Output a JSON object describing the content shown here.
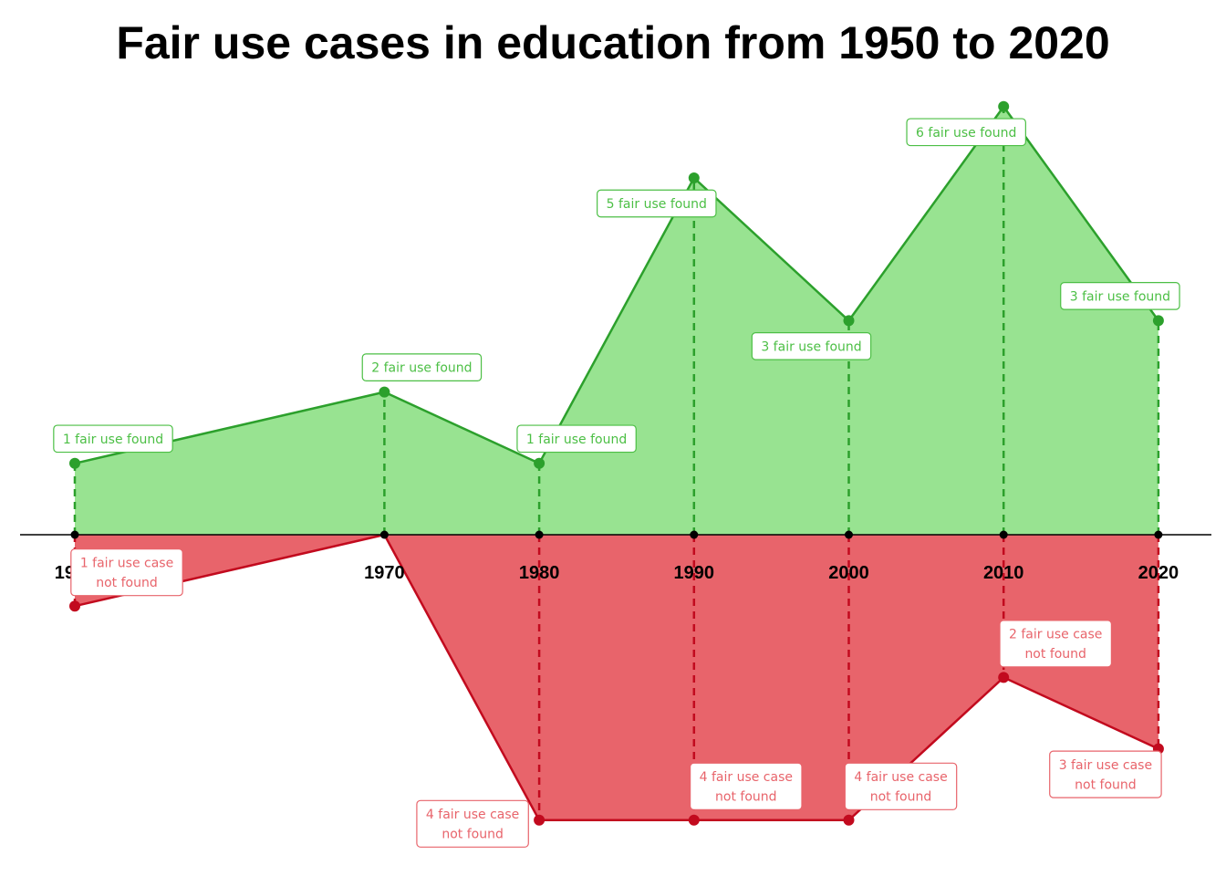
{
  "chart_data": {
    "type": "area",
    "title": "Fair use cases in education from 1950 to 2020",
    "xlabel": "",
    "ylabel": "",
    "x": [
      1950,
      1970,
      1980,
      1990,
      2000,
      2010,
      2020
    ],
    "tick_labels": [
      "1950",
      "1970",
      "1980",
      "1990",
      "2000",
      "2010",
      "2020"
    ],
    "series": [
      {
        "values": [
          1,
          2,
          1,
          5,
          3,
          6,
          3
        ],
        "color": "#2ca02c",
        "fill": "#98e391",
        "labels": [
          "1 fair use found",
          "2 fair use found",
          "1 fair use found",
          "5 fair use found",
          "3 fair use found",
          "6 fair use found",
          "3 fair use found"
        ]
      },
      {
        "values": [
          1,
          0,
          4,
          4,
          4,
          2,
          3
        ],
        "color": "#c20a1e",
        "fill": "#e8646b",
        "labels": [
          [
            "1 fair use case",
            "not found"
          ],
          null,
          [
            "4 fair use case",
            "not found"
          ],
          [
            "4 fair use case",
            "not found"
          ],
          [
            "4 fair use case",
            "not found"
          ],
          [
            "2 fair use case",
            "not found"
          ],
          [
            "3 fair use case",
            "not found"
          ]
        ]
      }
    ],
    "grid": false,
    "legend": "none"
  }
}
